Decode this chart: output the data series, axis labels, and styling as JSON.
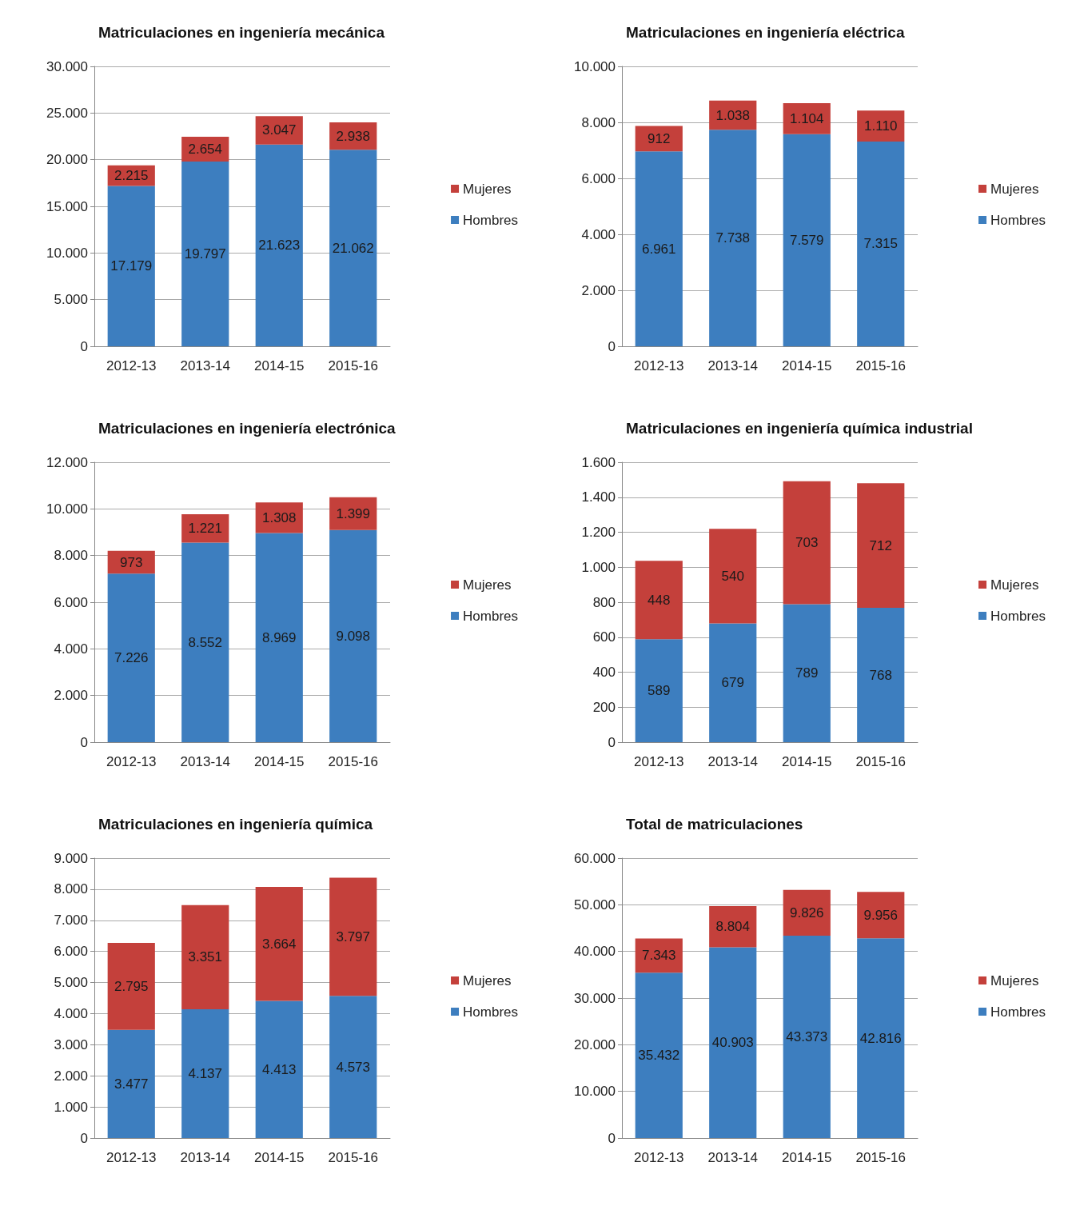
{
  "chart_data": [
    {
      "type": "bar",
      "title": "Matriculaciones en ingeniería mecánica",
      "categories": [
        "2012-13",
        "2013-14",
        "2014-15",
        "2015-16"
      ],
      "stacked": true,
      "grid": "y",
      "legend": "right",
      "ylim": [
        0,
        30000
      ],
      "yticks": [
        0,
        {
          "value": 5000,
          "label": "5.000"
        },
        {
          "value": 10000,
          "label": "10.000"
        },
        {
          "value": 15000,
          "label": "15.000"
        },
        {
          "value": 20000,
          "label": "20.000"
        },
        {
          "value": 25000,
          "label": "25.000"
        },
        {
          "value": 30000,
          "label": "30.000"
        }
      ],
      "series": [
        {
          "name": "Hombres",
          "color": "#3d7ebf",
          "values": [
            17179,
            19797,
            21623,
            21062
          ],
          "value_labels": [
            "17.179",
            "19.797",
            "21.623",
            "21.062"
          ]
        },
        {
          "name": "Mujeres",
          "color": "#c4403b",
          "values": [
            2215,
            2654,
            3047,
            2938
          ],
          "value_labels": [
            "2.215",
            "2.654",
            "3.047",
            "2.938"
          ]
        }
      ]
    },
    {
      "type": "bar",
      "title": "Matriculaciones en ingeniería eléctrica",
      "categories": [
        "2012-13",
        "2013-14",
        "2014-15",
        "2015-16"
      ],
      "stacked": true,
      "grid": "y",
      "legend": "right",
      "ylim": [
        0,
        10000
      ],
      "yticks": [
        0,
        {
          "value": 2000,
          "label": "2.000"
        },
        {
          "value": 4000,
          "label": "4.000"
        },
        {
          "value": 6000,
          "label": "6.000"
        },
        {
          "value": 8000,
          "label": "8.000"
        },
        {
          "value": 10000,
          "label": "10.000"
        }
      ],
      "series": [
        {
          "name": "Hombres",
          "color": "#3d7ebf",
          "values": [
            6961,
            7738,
            7579,
            7315
          ],
          "value_labels": [
            "6.961",
            "7.738",
            "7.579",
            "7.315"
          ]
        },
        {
          "name": "Mujeres",
          "color": "#c4403b",
          "values": [
            912,
            1038,
            1104,
            1110
          ],
          "value_labels": [
            "912",
            "1.038",
            "1.104",
            "1.110"
          ]
        }
      ]
    },
    {
      "type": "bar",
      "title": "Matriculaciones en ingeniería electrónica",
      "categories": [
        "2012-13",
        "2013-14",
        "2014-15",
        "2015-16"
      ],
      "stacked": true,
      "grid": "y",
      "legend": "right",
      "ylim": [
        0,
        12000
      ],
      "yticks": [
        0,
        {
          "value": 2000,
          "label": "2.000"
        },
        {
          "value": 4000,
          "label": "4.000"
        },
        {
          "value": 6000,
          "label": "6.000"
        },
        {
          "value": 8000,
          "label": "8.000"
        },
        {
          "value": 10000,
          "label": "10.000"
        },
        {
          "value": 12000,
          "label": "12.000"
        }
      ],
      "series": [
        {
          "name": "Hombres",
          "color": "#3d7ebf",
          "values": [
            7226,
            8552,
            8969,
            9098
          ],
          "value_labels": [
            "7.226",
            "8.552",
            "8.969",
            "9.098"
          ]
        },
        {
          "name": "Mujeres",
          "color": "#c4403b",
          "values": [
            973,
            1221,
            1308,
            1399
          ],
          "value_labels": [
            "973",
            "1.221",
            "1.308",
            "1.399"
          ]
        }
      ]
    },
    {
      "type": "bar",
      "title": "Matriculaciones en ingeniería química industrial",
      "categories": [
        "2012-13",
        "2013-14",
        "2014-15",
        "2015-16"
      ],
      "stacked": true,
      "grid": "y",
      "legend": "right",
      "ylim": [
        0,
        1600
      ],
      "yticks": [
        0,
        200,
        400,
        600,
        800,
        {
          "value": 1000,
          "label": "1.000"
        },
        {
          "value": 1200,
          "label": "1.200"
        },
        {
          "value": 1400,
          "label": "1.400"
        },
        {
          "value": 1600,
          "label": "1.600"
        }
      ],
      "series": [
        {
          "name": "Hombres",
          "color": "#3d7ebf",
          "values": [
            589,
            679,
            789,
            768
          ],
          "value_labels": [
            "589",
            "679",
            "789",
            "768"
          ]
        },
        {
          "name": "Mujeres",
          "color": "#c4403b",
          "values": [
            448,
            540,
            703,
            712
          ],
          "value_labels": [
            "448",
            "540",
            "703",
            "712"
          ]
        }
      ]
    },
    {
      "type": "bar",
      "title": "Matriculaciones en ingeniería química",
      "categories": [
        "2012-13",
        "2013-14",
        "2014-15",
        "2015-16"
      ],
      "stacked": true,
      "grid": "y",
      "legend": "right",
      "ylim": [
        0,
        9000
      ],
      "yticks": [
        0,
        {
          "value": 1000,
          "label": "1.000"
        },
        {
          "value": 2000,
          "label": "2.000"
        },
        {
          "value": 3000,
          "label": "3.000"
        },
        {
          "value": 4000,
          "label": "4.000"
        },
        {
          "value": 5000,
          "label": "5.000"
        },
        {
          "value": 6000,
          "label": "6.000"
        },
        {
          "value": 7000,
          "label": "7.000"
        },
        {
          "value": 8000,
          "label": "8.000"
        },
        {
          "value": 9000,
          "label": "9.000"
        }
      ],
      "series": [
        {
          "name": "Hombres",
          "color": "#3d7ebf",
          "values": [
            3477,
            4137,
            4413,
            4573
          ],
          "value_labels": [
            "3.477",
            "4.137",
            "4.413",
            "4.573"
          ]
        },
        {
          "name": "Mujeres",
          "color": "#c4403b",
          "values": [
            2795,
            3351,
            3664,
            3797
          ],
          "value_labels": [
            "2.795",
            "3.351",
            "3.664",
            "3.797"
          ]
        }
      ]
    },
    {
      "type": "bar",
      "title": "Total de matriculaciones",
      "categories": [
        "2012-13",
        "2013-14",
        "2014-15",
        "2015-16"
      ],
      "stacked": true,
      "grid": "y",
      "legend": "right",
      "ylim": [
        0,
        60000
      ],
      "yticks": [
        0,
        {
          "value": 10000,
          "label": "10.000"
        },
        {
          "value": 20000,
          "label": "20.000"
        },
        {
          "value": 30000,
          "label": "30.000"
        },
        {
          "value": 40000,
          "label": "40.000"
        },
        {
          "value": 50000,
          "label": "50.000"
        },
        {
          "value": 60000,
          "label": "60.000"
        }
      ],
      "series": [
        {
          "name": "Hombres",
          "color": "#3d7ebf",
          "values": [
            35432,
            40903,
            43373,
            42816
          ],
          "value_labels": [
            "35.432",
            "40.903",
            "43.373",
            "42.816"
          ]
        },
        {
          "name": "Mujeres",
          "color": "#c4403b",
          "values": [
            7343,
            8804,
            9826,
            9956
          ],
          "value_labels": [
            "7.343",
            "8.804",
            "9.826",
            "9.956"
          ]
        }
      ]
    }
  ]
}
